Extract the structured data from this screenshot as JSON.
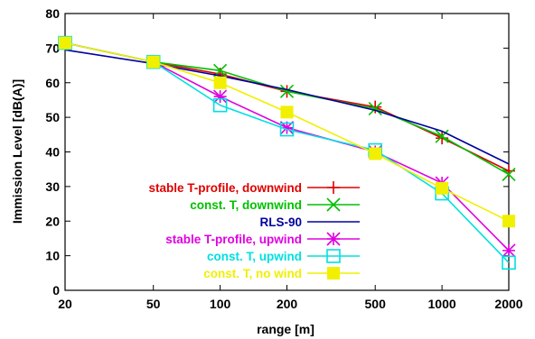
{
  "chart_data": {
    "type": "line",
    "title": "",
    "xlabel": "range [m]",
    "ylabel": "Immission Level [dB(A)]",
    "x_scale": "log",
    "x": [
      20,
      50,
      100,
      200,
      500,
      1000,
      2000
    ],
    "x_ticks": [
      "20",
      "50",
      "100",
      "200",
      "500",
      "1000",
      "2000"
    ],
    "ylim": [
      0,
      80
    ],
    "y_ticks": [
      "0",
      "10",
      "20",
      "30",
      "40",
      "50",
      "60",
      "70",
      "80"
    ],
    "grid": false,
    "legend_position": "bottom-left",
    "series": [
      {
        "name": "stable T-profile, downwind",
        "color": "#e00000",
        "marker": "plus",
        "values": [
          71.5,
          66.0,
          62.5,
          57.5,
          53.0,
          44.0,
          34.5
        ]
      },
      {
        "name": "const. T, downwind",
        "color": "#00c000",
        "marker": "cross",
        "values": [
          71.5,
          66.0,
          63.5,
          57.5,
          52.5,
          44.5,
          33.5
        ]
      },
      {
        "name": "RLS-90",
        "color": "#0000a0",
        "marker": "none",
        "values": [
          69.5,
          65.5,
          62.0,
          58.0,
          52.0,
          46.0,
          36.5
        ]
      },
      {
        "name": "stable T-profile, upwind",
        "color": "#e000e0",
        "marker": "star",
        "values": [
          71.5,
          66.0,
          56.0,
          47.0,
          40.0,
          31.0,
          11.5
        ]
      },
      {
        "name": "const. T, upwind",
        "color": "#00e0e0",
        "marker": "open-square",
        "values": [
          71.5,
          66.0,
          53.5,
          46.5,
          40.5,
          28.0,
          8.0
        ]
      },
      {
        "name": "const. T, no wind",
        "color": "#f0f000",
        "marker": "filled-square",
        "values": [
          71.5,
          66.0,
          60.0,
          51.5,
          39.5,
          29.5,
          20.0
        ]
      }
    ]
  }
}
